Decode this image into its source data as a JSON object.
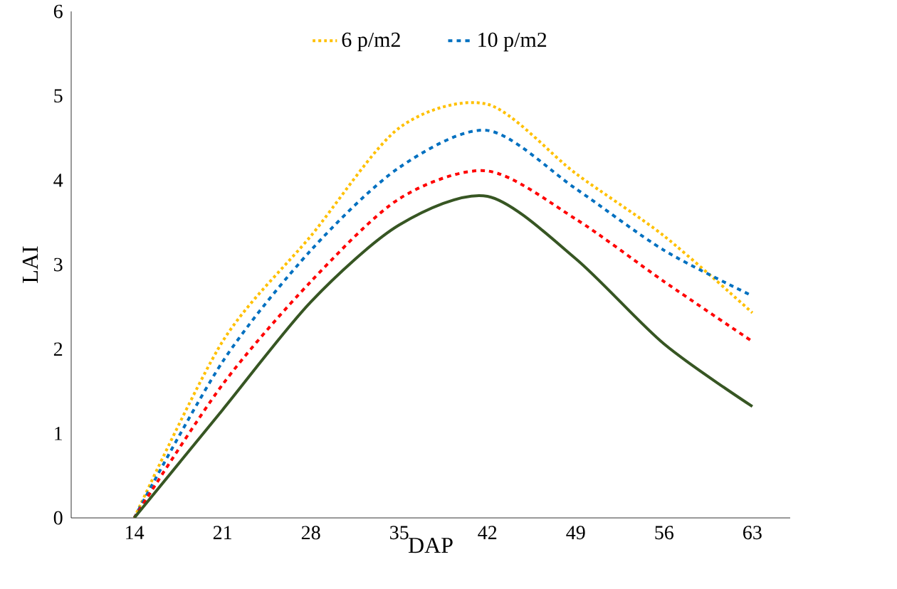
{
  "chart_data": {
    "type": "line",
    "xlabel": "DAP",
    "ylabel": "LAI",
    "x": [
      14,
      21,
      28,
      35,
      42,
      49,
      56,
      63
    ],
    "xlim": [
      9,
      66
    ],
    "xticks": [
      14,
      21,
      28,
      35,
      42,
      49,
      56,
      63
    ],
    "ylim": [
      0,
      6
    ],
    "yticks": [
      0,
      1,
      2,
      3,
      4,
      5,
      6
    ],
    "legend": "top",
    "grid": false,
    "marker": "none",
    "series": [
      {
        "name": "6 p/m2",
        "color": "#ffc000",
        "line_style": "dotted",
        "values": [
          0,
          2.09,
          3.34,
          4.62,
          4.9,
          4.08,
          3.34,
          2.43
        ]
      },
      {
        "name": "10 p/m2",
        "color": "#0070c0",
        "line_style": "dashed",
        "values": [
          0,
          1.85,
          3.17,
          4.15,
          4.59,
          3.9,
          3.17,
          2.63
        ]
      },
      {
        "color": "#ff0000",
        "line_style": "dashed",
        "values": [
          0,
          1.58,
          2.8,
          3.78,
          4.11,
          3.54,
          2.8,
          2.09
        ]
      },
      {
        "color": "#375623",
        "line_style": "solid",
        "values": [
          0,
          1.28,
          2.56,
          3.47,
          3.81,
          3.07,
          2.06,
          1.32
        ]
      }
    ]
  }
}
